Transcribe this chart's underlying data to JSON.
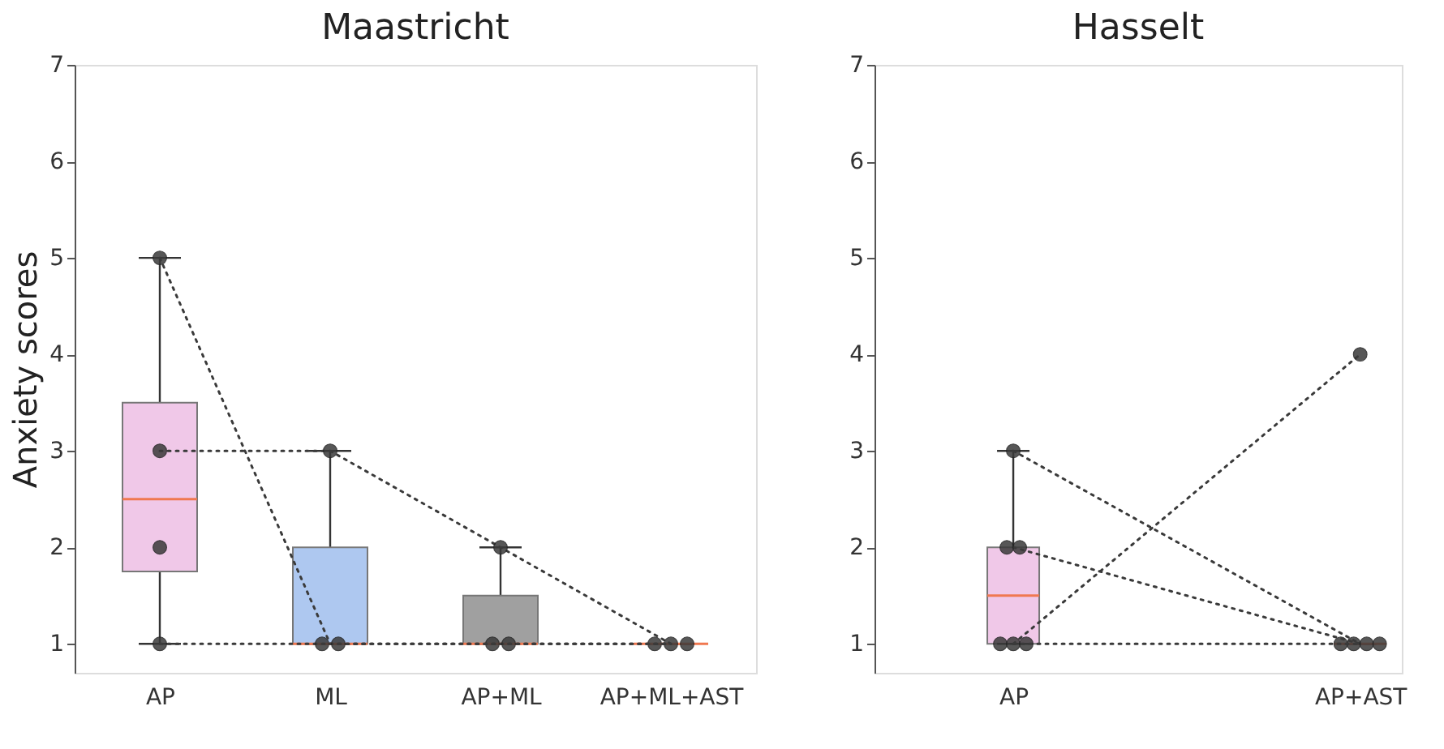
{
  "chart_data": [
    {
      "type": "box",
      "title": "Maastricht",
      "ylabel": "Anxiety scores",
      "categories": [
        "AP",
        "ML",
        "AP+ML",
        "AP+ML+AST"
      ],
      "colors": [
        "#f0c8e8",
        "#aec8f0",
        "#a0a0a0",
        null
      ],
      "boxes": [
        {
          "low": 1,
          "q1": 1.75,
          "median": 2.5,
          "q3": 3.5,
          "high": 5
        },
        {
          "low": 1,
          "q1": 1,
          "median": 1,
          "q3": 2,
          "high": 3
        },
        {
          "low": 1,
          "q1": 1,
          "median": 1,
          "q3": 1.5,
          "high": 2
        },
        {
          "low": 1,
          "q1": 1,
          "median": 1,
          "q3": 1,
          "high": 1
        }
      ],
      "series": [
        {
          "type": "line",
          "color": "#3a3a3a",
          "values": [
            3,
            3,
            2,
            1
          ]
        },
        {
          "type": "line",
          "color": "#3a3a3a",
          "values": [
            2,
            null,
            null,
            null
          ]
        },
        {
          "type": "line",
          "color": "#3a3a3a",
          "values": [
            1,
            1,
            1,
            1
          ]
        },
        {
          "type": "line",
          "color": "#3a3a3a",
          "values": [
            5,
            1,
            1,
            1
          ]
        }
      ],
      "marker": "circle",
      "line_style": "dotted",
      "ylim": [
        0.7,
        7
      ],
      "yticks": [
        1,
        2,
        3,
        4,
        5,
        6,
        7
      ]
    },
    {
      "type": "box",
      "title": "Hasselt",
      "categories": [
        "AP",
        "AP+AST"
      ],
      "colors": [
        "#f0c8e8",
        null
      ],
      "boxes": [
        {
          "low": 1,
          "q1": 1,
          "median": 1.5,
          "q3": 2,
          "high": 3
        },
        {
          "low": 1,
          "q1": 1,
          "median": 1,
          "q3": 1,
          "high": 1
        }
      ],
      "series": [
        {
          "type": "line",
          "color": "#3a3a3a",
          "values": [
            3,
            1
          ]
        },
        {
          "type": "line",
          "color": "#3a3a3a",
          "values": [
            2,
            null
          ]
        },
        {
          "type": "line",
          "color": "#3a3a3a",
          "values": [
            2,
            1
          ]
        },
        {
          "type": "line",
          "color": "#3a3a3a",
          "values": [
            1,
            1
          ]
        },
        {
          "type": "line",
          "color": "#3a3a3a",
          "values": [
            1,
            null
          ]
        },
        {
          "type": "line",
          "color": "#3a3a3a",
          "values": [
            null,
            1
          ]
        },
        {
          "type": "line",
          "color": "#3a3a3a",
          "values": [
            1,
            4
          ]
        }
      ],
      "marker": "circle",
      "line_style": "dotted",
      "ylim": [
        0.7,
        7
      ],
      "yticks": [
        1,
        2,
        3,
        4,
        5,
        6,
        7
      ]
    }
  ]
}
